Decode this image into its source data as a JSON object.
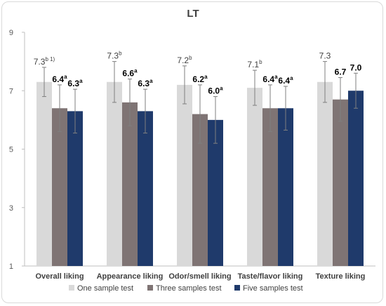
{
  "chart_data": {
    "type": "bar",
    "title": "LT",
    "xlabel": "",
    "ylabel": "",
    "ylim": [
      1,
      9
    ],
    "yticks": [
      1,
      3,
      5,
      7,
      9
    ],
    "grid": false,
    "legend_position": "bottom",
    "categories": [
      "Overall liking",
      "Appearance liking",
      "Odor/smell liking",
      "Taste/flavor liking",
      "Texture liking"
    ],
    "series": [
      {
        "name": "One sample test",
        "color": "#d9d9d9",
        "values": [
          7.3,
          7.3,
          7.2,
          7.1,
          7.3
        ],
        "errors": [
          0.5,
          0.7,
          0.65,
          0.6,
          0.7
        ],
        "labels": [
          "7.3",
          "7.3",
          "7.2",
          "7.1",
          "7.3"
        ],
        "sups": [
          "b 1)",
          "b",
          "b",
          "b",
          ""
        ]
      },
      {
        "name": "Three samples test",
        "color": "#7f7474",
        "values": [
          6.4,
          6.6,
          6.2,
          6.4,
          6.7
        ],
        "errors": [
          0.8,
          0.8,
          1.0,
          0.8,
          0.75
        ],
        "labels": [
          "6.4",
          "6.6",
          "6.2",
          "6.4",
          "6.7"
        ],
        "sups": [
          "a",
          "a",
          "a",
          "a",
          ""
        ]
      },
      {
        "name": "Five samples test",
        "color": "#1f3a6b",
        "values": [
          6.3,
          6.3,
          6.0,
          6.4,
          7.0
        ],
        "errors": [
          0.75,
          0.75,
          0.8,
          0.75,
          0.6
        ],
        "labels": [
          "6.3",
          "6.3",
          "6.0",
          "6.4",
          "7.0"
        ],
        "sups": [
          "a",
          "a",
          "a",
          "a",
          ""
        ]
      }
    ]
  }
}
